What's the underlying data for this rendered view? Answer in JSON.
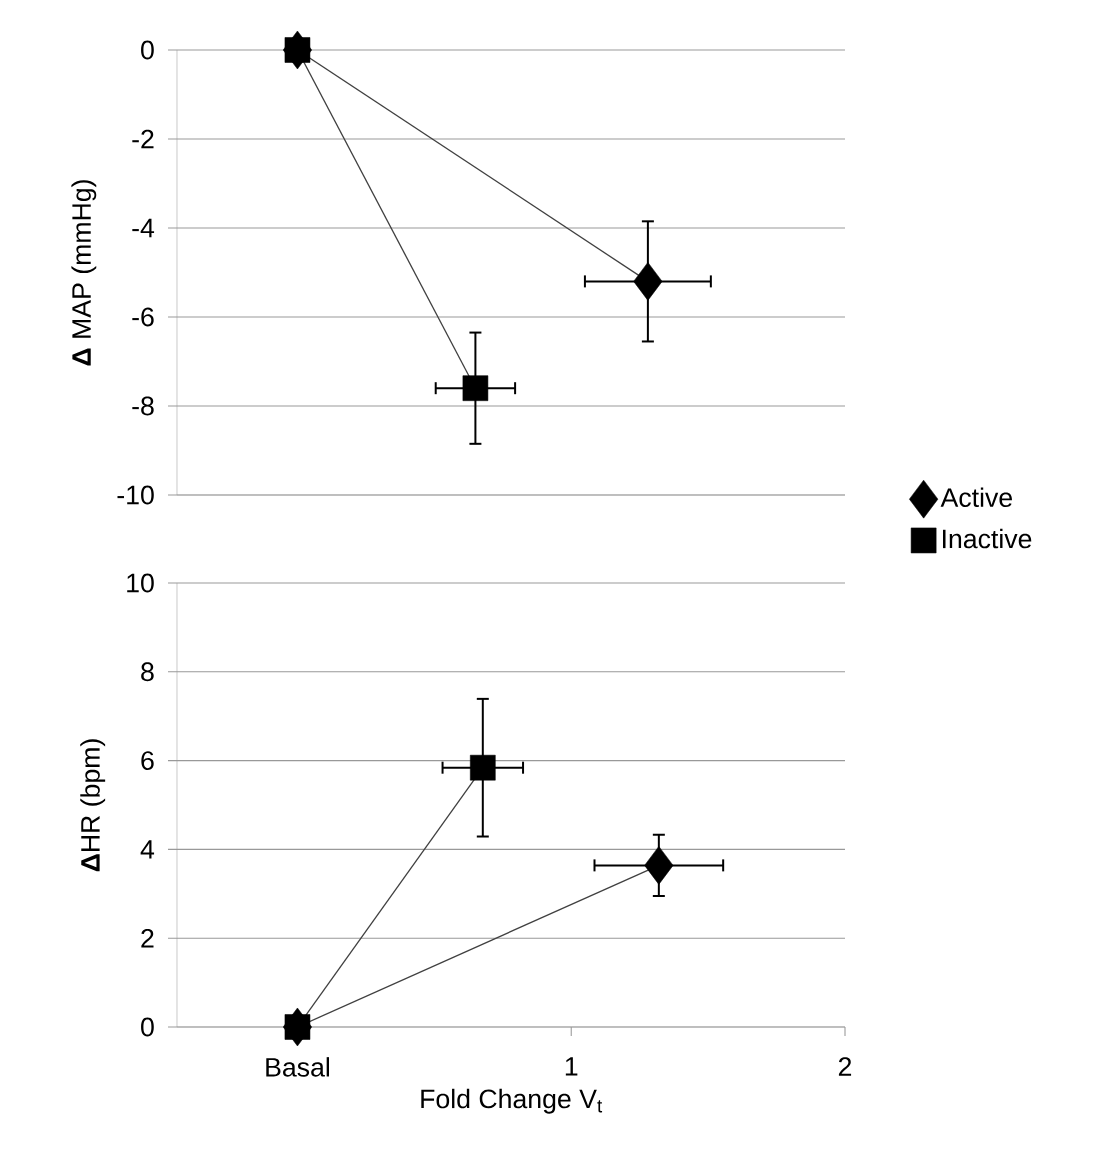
{
  "chart_data": [
    {
      "type": "line",
      "ylabel": "**Δ** MAP (mmHg)",
      "xlim": [
        -0.44,
        2
      ],
      "ylim": [
        -10,
        0
      ],
      "yticks": [
        -10,
        -8,
        -6,
        -4,
        -2,
        0
      ],
      "grid": "y",
      "legend": "right",
      "tick_labels": "y",
      "line_style": "solid",
      "series": [
        {
          "name": "Active",
          "color": "#000000",
          "marker": "diamond",
          "x": [
            0,
            1.28
          ],
          "values": [
            0,
            -5.2
          ],
          "errors": [
            null,
            1.35
          ],
          "xerrors": [
            null,
            0.23
          ]
        },
        {
          "name": "Inactive",
          "color": "#000000",
          "marker": "square",
          "x": [
            0,
            0.65
          ],
          "values": [
            0,
            -7.6
          ],
          "errors": [
            null,
            1.25
          ],
          "xerrors": [
            null,
            0.145
          ]
        }
      ]
    },
    {
      "type": "line",
      "ylabel": "**Δ**HR (bpm)",
      "xlabel": "Fold Change V$_{t}$",
      "xlim": [
        -0.44,
        2
      ],
      "xticks": [
        {
          "value": 0,
          "label": "Basal"
        },
        1,
        2
      ],
      "ylim": [
        0,
        10
      ],
      "yticks": [
        0,
        2,
        4,
        6,
        8,
        10
      ],
      "grid": "y",
      "line_style": "solid",
      "series": [
        {
          "color": "#000000",
          "marker": "diamond",
          "x": [
            0,
            1.32
          ],
          "values": [
            0,
            3.64
          ],
          "errors": [
            null,
            0.69
          ],
          "xerrors": [
            null,
            0.235
          ]
        },
        {
          "color": "#000000",
          "marker": "square",
          "x": [
            0,
            0.677
          ],
          "values": [
            0,
            5.84
          ],
          "errors": [
            null,
            1.55
          ],
          "xerrors": [
            null,
            0.147
          ]
        }
      ]
    }
  ]
}
